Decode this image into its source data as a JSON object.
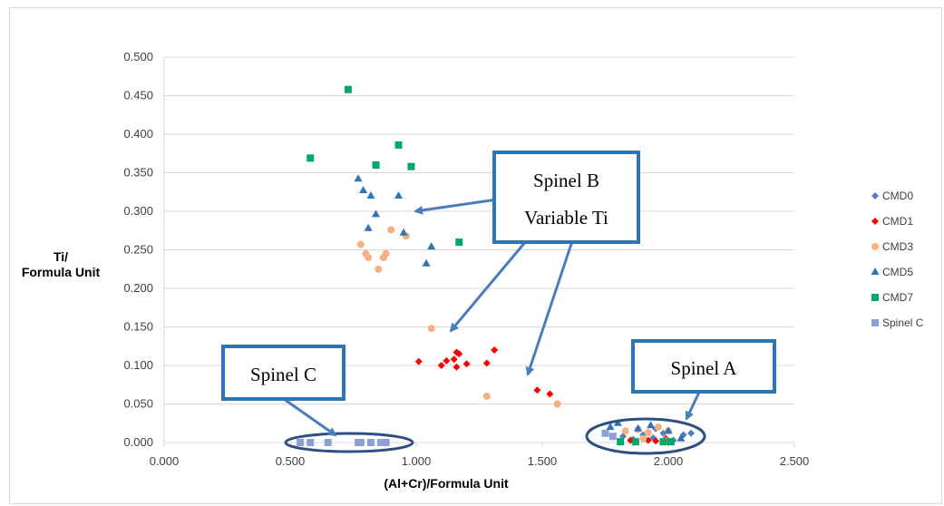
{
  "chart_data": {
    "type": "scatter",
    "xlabel": "(Al+Cr)/Formula Unit",
    "ylabel_lines": [
      "Ti/",
      "Formula Unit"
    ],
    "xlim": [
      0,
      2.5
    ],
    "ylim": [
      0,
      0.5
    ],
    "x_ticks": [
      0,
      0.5,
      1.0,
      1.5,
      2.0,
      2.5
    ],
    "x_tick_labels": [
      "0.000",
      "0.500",
      "1.000",
      "1.500",
      "2.000",
      "2.500"
    ],
    "y_ticks": [
      0,
      0.05,
      0.1,
      0.15,
      0.2,
      0.25,
      0.3,
      0.35,
      0.4,
      0.45,
      0.5
    ],
    "y_tick_labels": [
      "0.000",
      "0.050",
      "0.100",
      "0.150",
      "0.200",
      "0.250",
      "0.300",
      "0.350",
      "0.400",
      "0.450",
      "0.500"
    ],
    "grid": "horizontal",
    "legend_position": "right",
    "series": [
      {
        "name": "CMD0",
        "marker": "diamond",
        "color": "#4f81bd",
        "points": [
          [
            1.82,
            0.008
          ],
          [
            1.86,
            0.004
          ],
          [
            1.9,
            0.01
          ],
          [
            1.94,
            0.006
          ],
          [
            1.98,
            0.012
          ],
          [
            2.02,
            0.003
          ],
          [
            2.06,
            0.01
          ],
          [
            2.09,
            0.012
          ],
          [
            1.95,
            0.018
          ],
          [
            2.0,
            0.002
          ]
        ]
      },
      {
        "name": "CMD1",
        "marker": "diamond",
        "color": "#ff0000",
        "points": [
          [
            1.01,
            0.105
          ],
          [
            1.1,
            0.1
          ],
          [
            1.12,
            0.106
          ],
          [
            1.15,
            0.108
          ],
          [
            1.16,
            0.098
          ],
          [
            1.16,
            0.117
          ],
          [
            1.17,
            0.115
          ],
          [
            1.2,
            0.102
          ],
          [
            1.28,
            0.103
          ],
          [
            1.31,
            0.12
          ],
          [
            1.48,
            0.068
          ],
          [
            1.53,
            0.063
          ],
          [
            1.85,
            0.003
          ],
          [
            1.92,
            0.003
          ],
          [
            1.95,
            0.002
          ],
          [
            1.99,
            0.005
          ]
        ]
      },
      {
        "name": "CMD3",
        "marker": "circle",
        "color": "#f4b183",
        "points": [
          [
            0.78,
            0.257
          ],
          [
            0.8,
            0.245
          ],
          [
            0.81,
            0.24
          ],
          [
            0.85,
            0.225
          ],
          [
            0.87,
            0.24
          ],
          [
            0.88,
            0.245
          ],
          [
            0.9,
            0.276
          ],
          [
            0.96,
            0.268
          ],
          [
            1.06,
            0.148
          ],
          [
            1.28,
            0.06
          ],
          [
            1.56,
            0.05
          ],
          [
            1.83,
            0.015
          ],
          [
            1.88,
            0.017
          ],
          [
            1.92,
            0.013
          ],
          [
            1.96,
            0.02
          ],
          [
            2.0,
            0.015
          ],
          [
            1.9,
            0.005
          ],
          [
            1.99,
            0.002
          ]
        ]
      },
      {
        "name": "CMD5",
        "marker": "triangle",
        "color": "#2e75b6",
        "points": [
          [
            0.77,
            0.342
          ],
          [
            0.79,
            0.327
          ],
          [
            0.82,
            0.32
          ],
          [
            0.84,
            0.296
          ],
          [
            0.81,
            0.278
          ],
          [
            0.93,
            0.32
          ],
          [
            0.95,
            0.272
          ],
          [
            1.04,
            0.232
          ],
          [
            1.06,
            0.254
          ],
          [
            1.77,
            0.02
          ],
          [
            1.8,
            0.025
          ],
          [
            1.88,
            0.018
          ],
          [
            1.93,
            0.022
          ],
          [
            2.0,
            0.015
          ],
          [
            2.05,
            0.005
          ]
        ]
      },
      {
        "name": "CMD7",
        "marker": "square",
        "color": "#00a86b",
        "points": [
          [
            0.58,
            0.369
          ],
          [
            0.73,
            0.458
          ],
          [
            0.84,
            0.36
          ],
          [
            0.93,
            0.386
          ],
          [
            0.98,
            0.358
          ],
          [
            1.17,
            0.26
          ],
          [
            1.81,
            0.001
          ],
          [
            1.87,
            0.001
          ],
          [
            1.98,
            0.001
          ],
          [
            2.01,
            0.001
          ]
        ]
      },
      {
        "name": "Spinel C",
        "marker": "square",
        "color": "#8e9fd5",
        "points": [
          [
            0.54,
            0.0
          ],
          [
            0.58,
            0.0
          ],
          [
            0.65,
            0.0
          ],
          [
            0.77,
            0.0
          ],
          [
            0.78,
            0.0
          ],
          [
            0.82,
            0.0
          ],
          [
            0.86,
            0.0
          ],
          [
            0.88,
            0.0
          ],
          [
            1.75,
            0.012
          ],
          [
            1.78,
            0.008
          ]
        ]
      }
    ],
    "annotations": [
      {
        "name": "spinel-b",
        "lines": [
          "Spinel B",
          "Variable Ti"
        ]
      },
      {
        "name": "spinel-c",
        "lines": [
          "Spinel C"
        ]
      },
      {
        "name": "spinel-a",
        "lines": [
          "Spinel A"
        ]
      }
    ]
  },
  "colors": {
    "axis_line": "#d9d9d9",
    "gridline": "#d9d9d9",
    "annotation_border": "#2e75b6",
    "arrow": "#4a7ebb",
    "ellipse": "#2e4f7f"
  }
}
